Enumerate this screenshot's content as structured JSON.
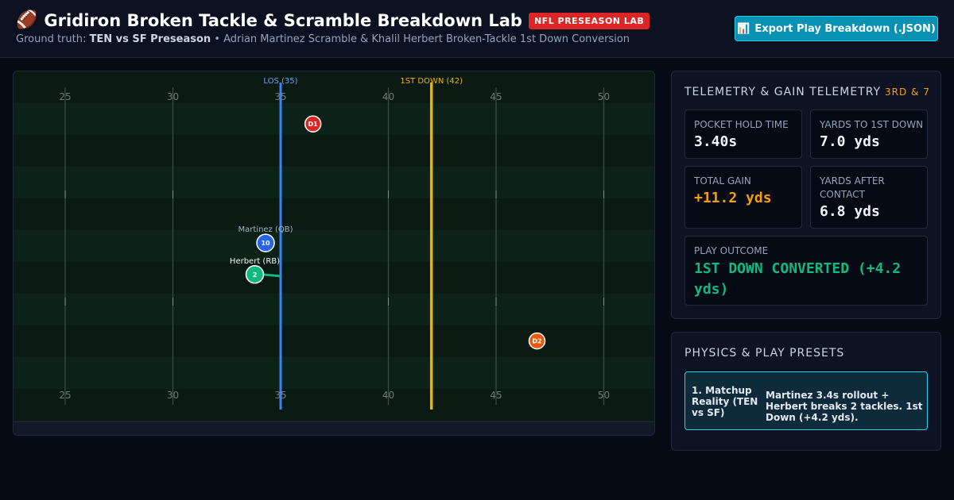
{
  "header": {
    "icon": "football-icon",
    "title": "Gridiron Broken Tackle & Scramble Breakdown Lab",
    "badge": "NFL PRESEASON LAB",
    "subtitle_prefix": "Ground truth: ",
    "subtitle_bold": "TEN vs SF Preseason",
    "subtitle_rest": " • Adrian Martinez Scramble & Khalil Herbert Broken-Tackle 1st Down Conversion",
    "export_icon": "chart-icon",
    "export_label": "Export Play Breakdown (.JSON)"
  },
  "field": {
    "yard_numbers": [
      25,
      30,
      35,
      40,
      45,
      50
    ],
    "los_label": "LOS (35)",
    "first_down_label": "1ST DOWN (42)",
    "los_yard": 35,
    "first_down_yard": 42,
    "colors": {
      "los": "#3b82f6",
      "first_down": "#eab308",
      "offense_qb": "#2563eb",
      "offense_rb": "#10b981",
      "defense_1": "#dc2626",
      "defense_2": "#ea580c"
    },
    "players": [
      {
        "id": "qb",
        "number": "10",
        "label": "Martinez (QB)",
        "yard": 34.3,
        "lane": 0.49
      },
      {
        "id": "rb",
        "number": "2",
        "label": "Herbert (RB)",
        "yard": 33.8,
        "lane": 0.58
      },
      {
        "id": "d1",
        "number": "D1",
        "label": "",
        "yard": 36.5,
        "lane": 0.15
      },
      {
        "id": "d2",
        "number": "D2",
        "label": "",
        "yard": 46.9,
        "lane": 0.77
      }
    ]
  },
  "telemetry": {
    "title": "TELEMETRY & GAIN TELEMETRY",
    "down": "3RD & 7",
    "pocket_label": "POCKET HOLD TIME",
    "pocket_value": "3.40s",
    "ytf_label": "YARDS TO 1ST DOWN",
    "ytf_value": "7.0 yds",
    "gain_label": "TOTAL GAIN",
    "gain_value": "+11.2 yds",
    "yac_label": "YARDS AFTER CONTACT",
    "yac_value": "6.8 yds",
    "outcome_label": "PLAY OUTCOME",
    "outcome_value": "1ST DOWN CONVERTED (+4.2 yds)"
  },
  "physics": {
    "title": "PHYSICS & PLAY PRESETS",
    "presets": [
      {
        "name": "1. Matchup Reality (TEN vs SF)",
        "desc": "Martinez 3.4s rollout + Herbert breaks 2 tackles. 1st Down (+4.2 yds)."
      }
    ]
  }
}
